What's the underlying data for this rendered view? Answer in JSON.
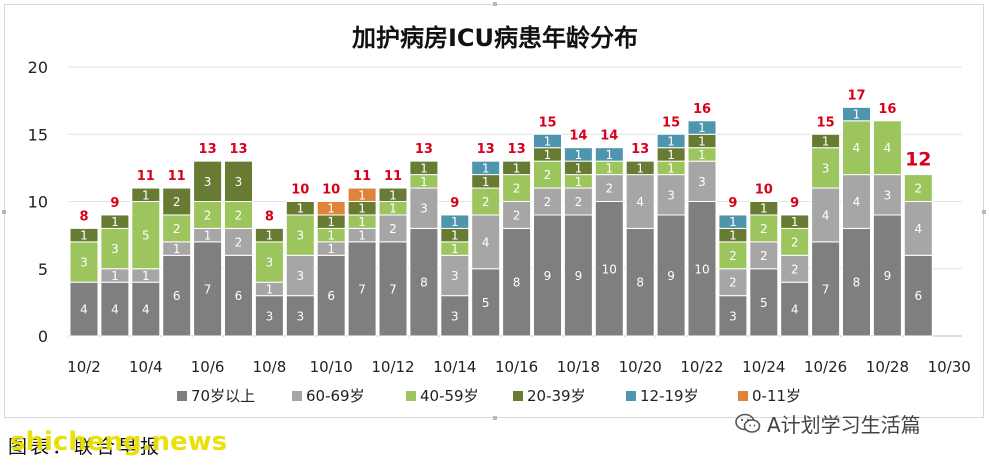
{
  "chart_data": {
    "type": "bar",
    "stacked": true,
    "title": "加护病房ICU病患年龄分布",
    "categories": [
      "10/2",
      "10/3",
      "10/4",
      "10/5",
      "10/6",
      "10/7",
      "10/8",
      "10/9",
      "10/10",
      "10/11",
      "10/12",
      "10/13",
      "10/14",
      "10/15",
      "10/16",
      "10/17",
      "10/18",
      "10/19",
      "10/20",
      "10/21",
      "10/22",
      "10/23",
      "10/24",
      "10/25",
      "10/26",
      "10/27",
      "10/28",
      "10/29"
    ],
    "x_tick_labels": [
      "10/2",
      "10/4",
      "10/6",
      "10/8",
      "10/10",
      "10/12",
      "10/14",
      "10/16",
      "10/18",
      "10/20",
      "10/22",
      "10/24",
      "10/26",
      "10/28",
      "10/30"
    ],
    "ylim": [
      0,
      20
    ],
    "y_ticks": [
      0,
      5,
      10,
      15,
      20
    ],
    "grid": true,
    "legend_position": "bottom",
    "series": [
      {
        "name": "70岁以上",
        "color": "#7f7f7f",
        "values": [
          4,
          4,
          4,
          6,
          7,
          6,
          3,
          3,
          6,
          7,
          7,
          8,
          3,
          5,
          8,
          9,
          9,
          10,
          8,
          9,
          10,
          3,
          5,
          4,
          7,
          8,
          9,
          6
        ]
      },
      {
        "name": "60-69岁",
        "color": "#a6a6a6",
        "values": [
          0,
          1,
          1,
          1,
          1,
          2,
          1,
          3,
          1,
          1,
          2,
          3,
          3,
          4,
          2,
          2,
          2,
          2,
          4,
          3,
          3,
          2,
          2,
          2,
          4,
          4,
          3,
          4
        ]
      },
      {
        "name": "40-59岁",
        "color": "#9dc55d",
        "values": [
          3,
          3,
          5,
          2,
          2,
          2,
          3,
          3,
          1,
          1,
          1,
          1,
          1,
          2,
          2,
          2,
          1,
          1,
          0,
          1,
          1,
          2,
          2,
          2,
          3,
          4,
          4,
          2
        ]
      },
      {
        "name": "20-39岁",
        "color": "#677b32",
        "values": [
          1,
          1,
          1,
          2,
          3,
          3,
          1,
          1,
          1,
          1,
          1,
          1,
          1,
          1,
          1,
          1,
          1,
          0,
          1,
          1,
          1,
          1,
          1,
          1,
          1,
          0,
          0,
          0
        ]
      },
      {
        "name": "12-19岁",
        "color": "#4e95ad",
        "values": [
          0,
          0,
          0,
          0,
          0,
          0,
          0,
          0,
          0,
          0,
          0,
          0,
          1,
          1,
          0,
          1,
          1,
          1,
          0,
          1,
          1,
          1,
          0,
          0,
          0,
          1,
          0,
          0
        ]
      },
      {
        "name": "0-11岁",
        "color": "#e0833a",
        "values": [
          0,
          0,
          0,
          0,
          0,
          0,
          0,
          0,
          1,
          1,
          0,
          0,
          0,
          0,
          0,
          0,
          0,
          0,
          0,
          0,
          0,
          0,
          0,
          0,
          0,
          0,
          0,
          0
        ]
      }
    ],
    "totals": [
      8,
      9,
      11,
      11,
      13,
      13,
      8,
      10,
      10,
      11,
      11,
      13,
      9,
      13,
      13,
      15,
      14,
      14,
      13,
      15,
      16,
      9,
      10,
      9,
      15,
      17,
      16,
      12
    ],
    "total_label_color": "#d9001b"
  },
  "caption": "图表：联合早报",
  "watermark": "shicheng.news",
  "account_name": "A计划学习生活篇",
  "icons": {
    "account": "wechat-icon"
  }
}
